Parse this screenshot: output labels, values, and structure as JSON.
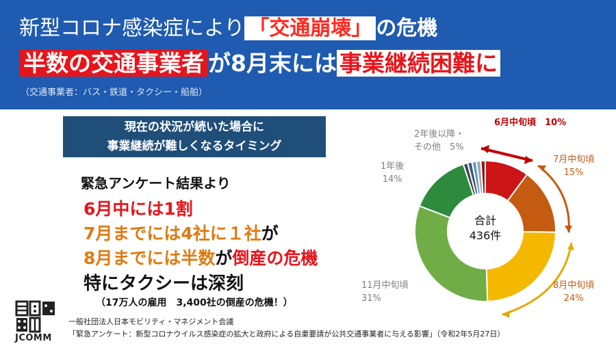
{
  "header": {
    "line1_plain": "新型コロナ感染症により",
    "line1_red": "「交通崩壊」",
    "line1_end": "の危機",
    "line2_box": "半数の交通事業者",
    "line2_mid": "が8月末には",
    "line2_red": "事業継続困難に",
    "subtitle": "（交通事業者：バス・鉄道・タクシー・船舶）"
  },
  "timing_box": {
    "line1": "現在の状況が続いた場合に",
    "line2": "事業継続が難しくなるタイミング"
  },
  "body": {
    "survey": "緊急アンケート結果より",
    "l1": "6月中には1割",
    "l2a": "7月までには4社に１社",
    "l2b": "が",
    "l3a": "8月までには半数",
    "l3b": "が",
    "l3c": "倒産の危機",
    "l4": "特にタクシーは深刻",
    "l5": "（17万人の雇用　3,400社の倒産の危機！）"
  },
  "logo": {
    "text": "JCOMM"
  },
  "footer": {
    "line1": "一般社団法人日本モビリティ・マネジメント会議",
    "line2": "「緊急アンケート：新型コロナウイルス感染症の拡大と政府による自粛要請が公共交通事業者に与える影響」（令和2年5月27日）"
  },
  "chart_data": {
    "type": "pie",
    "center_label": "合計",
    "center_value": "436件",
    "categories": [
      "6月中旬頃",
      "7月中旬頃",
      "8月中旬頃",
      "11月中旬頃",
      "1年後",
      "2年後以降・その他"
    ],
    "values": [
      10,
      15,
      24,
      31,
      14,
      5
    ],
    "value_labels": [
      "10%",
      "15%",
      "24%",
      "31%",
      "14%",
      "5%"
    ],
    "colors": [
      "#cc1517",
      "#c55a11",
      "#f5b800",
      "#70ad47",
      "#2e8b3e",
      "#3a4a5c"
    ],
    "small_slice_colors": [
      "#3a4a5c",
      "#44546a",
      "#5b9bd5",
      "#a5a5a5",
      "#8b1a1a"
    ]
  }
}
